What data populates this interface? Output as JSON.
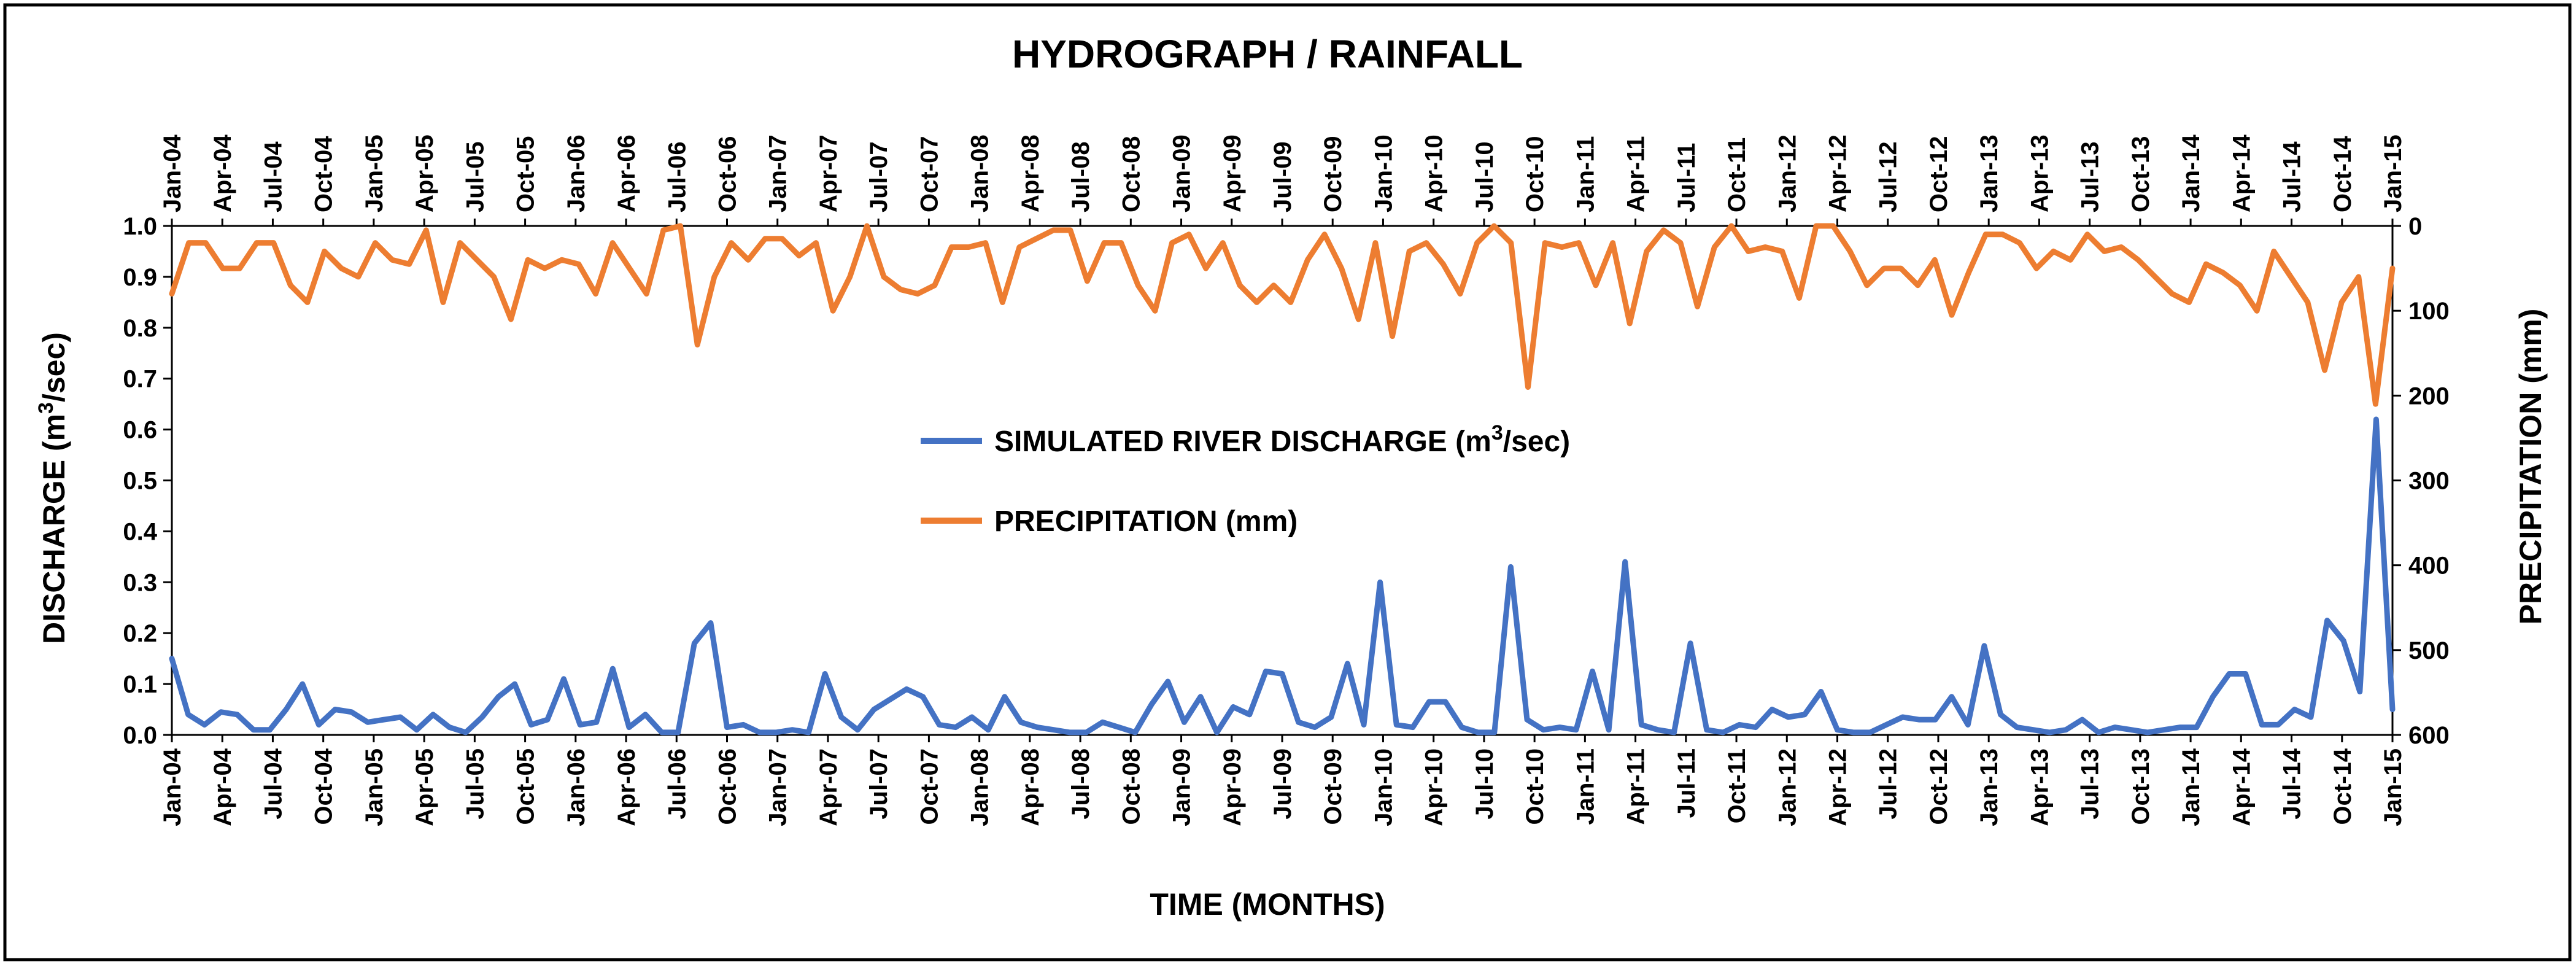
{
  "chart_data": {
    "type": "line",
    "title": "HYDROGRAPH / RAINFALL",
    "xlabel": "TIME (MONTHS)",
    "ylabel_left": {
      "base": "DISCHARGE (m",
      "sup": "3",
      "tail": "/sec)"
    },
    "ylabel_right": "PRECIPITATION (mm)",
    "y_left_lim": [
      0,
      1.0
    ],
    "y_left_ticks": [
      "0.0",
      "0.1",
      "0.2",
      "0.3",
      "0.4",
      "0.5",
      "0.6",
      "0.7",
      "0.8",
      "0.9",
      "1.0"
    ],
    "y_right_lim": [
      600,
      0
    ],
    "y_right_ticks": [
      "0",
      "100",
      "200",
      "300",
      "400",
      "500",
      "600"
    ],
    "x_tick_labels": [
      "Jan-04",
      "Apr-04",
      "Jul-04",
      "Oct-04",
      "Jan-05",
      "Apr-05",
      "Jul-05",
      "Oct-05",
      "Jan-06",
      "Apr-06",
      "Jul-06",
      "Oct-06",
      "Jan-07",
      "Apr-07",
      "Jul-07",
      "Oct-07",
      "Jan-08",
      "Apr-08",
      "Jul-08",
      "Oct-08",
      "Jan-09",
      "Apr-09",
      "Jul-09",
      "Oct-09",
      "Jan-10",
      "Apr-10",
      "Jul-10",
      "Oct-10",
      "Jan-11",
      "Apr-11",
      "Jul-11",
      "Oct-11",
      "Jan-12",
      "Apr-12",
      "Jul-12",
      "Oct-12",
      "Jan-13",
      "Apr-13",
      "Jul-13",
      "Oct-13",
      "Jan-14",
      "Apr-14",
      "Jul-14",
      "Oct-14",
      "Jan-15"
    ],
    "legend_position": "center",
    "series": [
      {
        "name": "SIMULATED RIVER DISCHARGE",
        "legend_base": "SIMULATED RIVER DISCHARGE (m",
        "legend_sup": "3",
        "legend_tail": "/sec)",
        "axis": "left",
        "color": "#4472C4",
        "values": [
          0.15,
          0.04,
          0.02,
          0.045,
          0.04,
          0.01,
          0.01,
          0.05,
          0.1,
          0.02,
          0.05,
          0.045,
          0.025,
          0.03,
          0.035,
          0.01,
          0.04,
          0.015,
          0.005,
          0.035,
          0.075,
          0.1,
          0.02,
          0.03,
          0.11,
          0.02,
          0.025,
          0.13,
          0.015,
          0.04,
          0.005,
          0.005,
          0.18,
          0.22,
          0.015,
          0.02,
          0.005,
          0.005,
          0.01,
          0.005,
          0.12,
          0.035,
          0.01,
          0.05,
          0.07,
          0.09,
          0.075,
          0.02,
          0.015,
          0.035,
          0.01,
          0.075,
          0.025,
          0.015,
          0.01,
          0.005,
          0.005,
          0.025,
          0.015,
          0.005,
          0.06,
          0.105,
          0.025,
          0.075,
          0.005,
          0.055,
          0.04,
          0.125,
          0.12,
          0.025,
          0.015,
          0.035,
          0.14,
          0.02,
          0.3,
          0.02,
          0.015,
          0.065,
          0.065,
          0.015,
          0.005,
          0.005,
          0.33,
          0.03,
          0.01,
          0.015,
          0.01,
          0.125,
          0.01,
          0.34,
          0.02,
          0.01,
          0.005,
          0.18,
          0.01,
          0.005,
          0.02,
          0.015,
          0.05,
          0.035,
          0.04,
          0.085,
          0.01,
          0.005,
          0.005,
          0.02,
          0.035,
          0.03,
          0.03,
          0.075,
          0.02,
          0.175,
          0.04,
          0.015,
          0.01,
          0.005,
          0.01,
          0.03,
          0.005,
          0.015,
          0.01,
          0.005,
          0.01,
          0.015,
          0.015,
          0.075,
          0.12,
          0.12,
          0.02,
          0.02,
          0.05,
          0.035,
          0.225,
          0.185,
          0.085,
          0.62,
          0.05
        ]
      },
      {
        "name": "PRECIPITATION (mm)",
        "legend_base": "PRECIPITATION (mm)",
        "legend_sup": "",
        "legend_tail": "",
        "axis": "right",
        "color": "#ED7D31",
        "values": [
          80,
          20,
          20,
          50,
          50,
          20,
          20,
          70,
          90,
          30,
          50,
          60,
          20,
          40,
          45,
          5,
          90,
          20,
          40,
          60,
          110,
          40,
          50,
          40,
          45,
          80,
          20,
          50,
          80,
          5,
          0,
          140,
          60,
          20,
          40,
          15,
          15,
          35,
          20,
          100,
          60,
          0,
          60,
          75,
          80,
          70,
          25,
          25,
          20,
          90,
          25,
          15,
          5,
          5,
          65,
          20,
          20,
          70,
          100,
          20,
          10,
          50,
          20,
          70,
          90,
          70,
          90,
          40,
          10,
          50,
          110,
          20,
          130,
          30,
          20,
          45,
          80,
          20,
          0,
          20,
          190,
          20,
          25,
          20,
          70,
          20,
          115,
          30,
          5,
          20,
          95,
          25,
          0,
          30,
          25,
          30,
          85,
          0,
          0,
          30,
          70,
          50,
          50,
          70,
          40,
          105,
          55,
          10,
          10,
          20,
          50,
          30,
          40,
          10,
          30,
          25,
          40,
          60,
          80,
          90,
          45,
          55,
          70,
          100,
          30,
          60,
          90,
          170,
          90,
          60,
          210,
          50
        ]
      }
    ]
  }
}
